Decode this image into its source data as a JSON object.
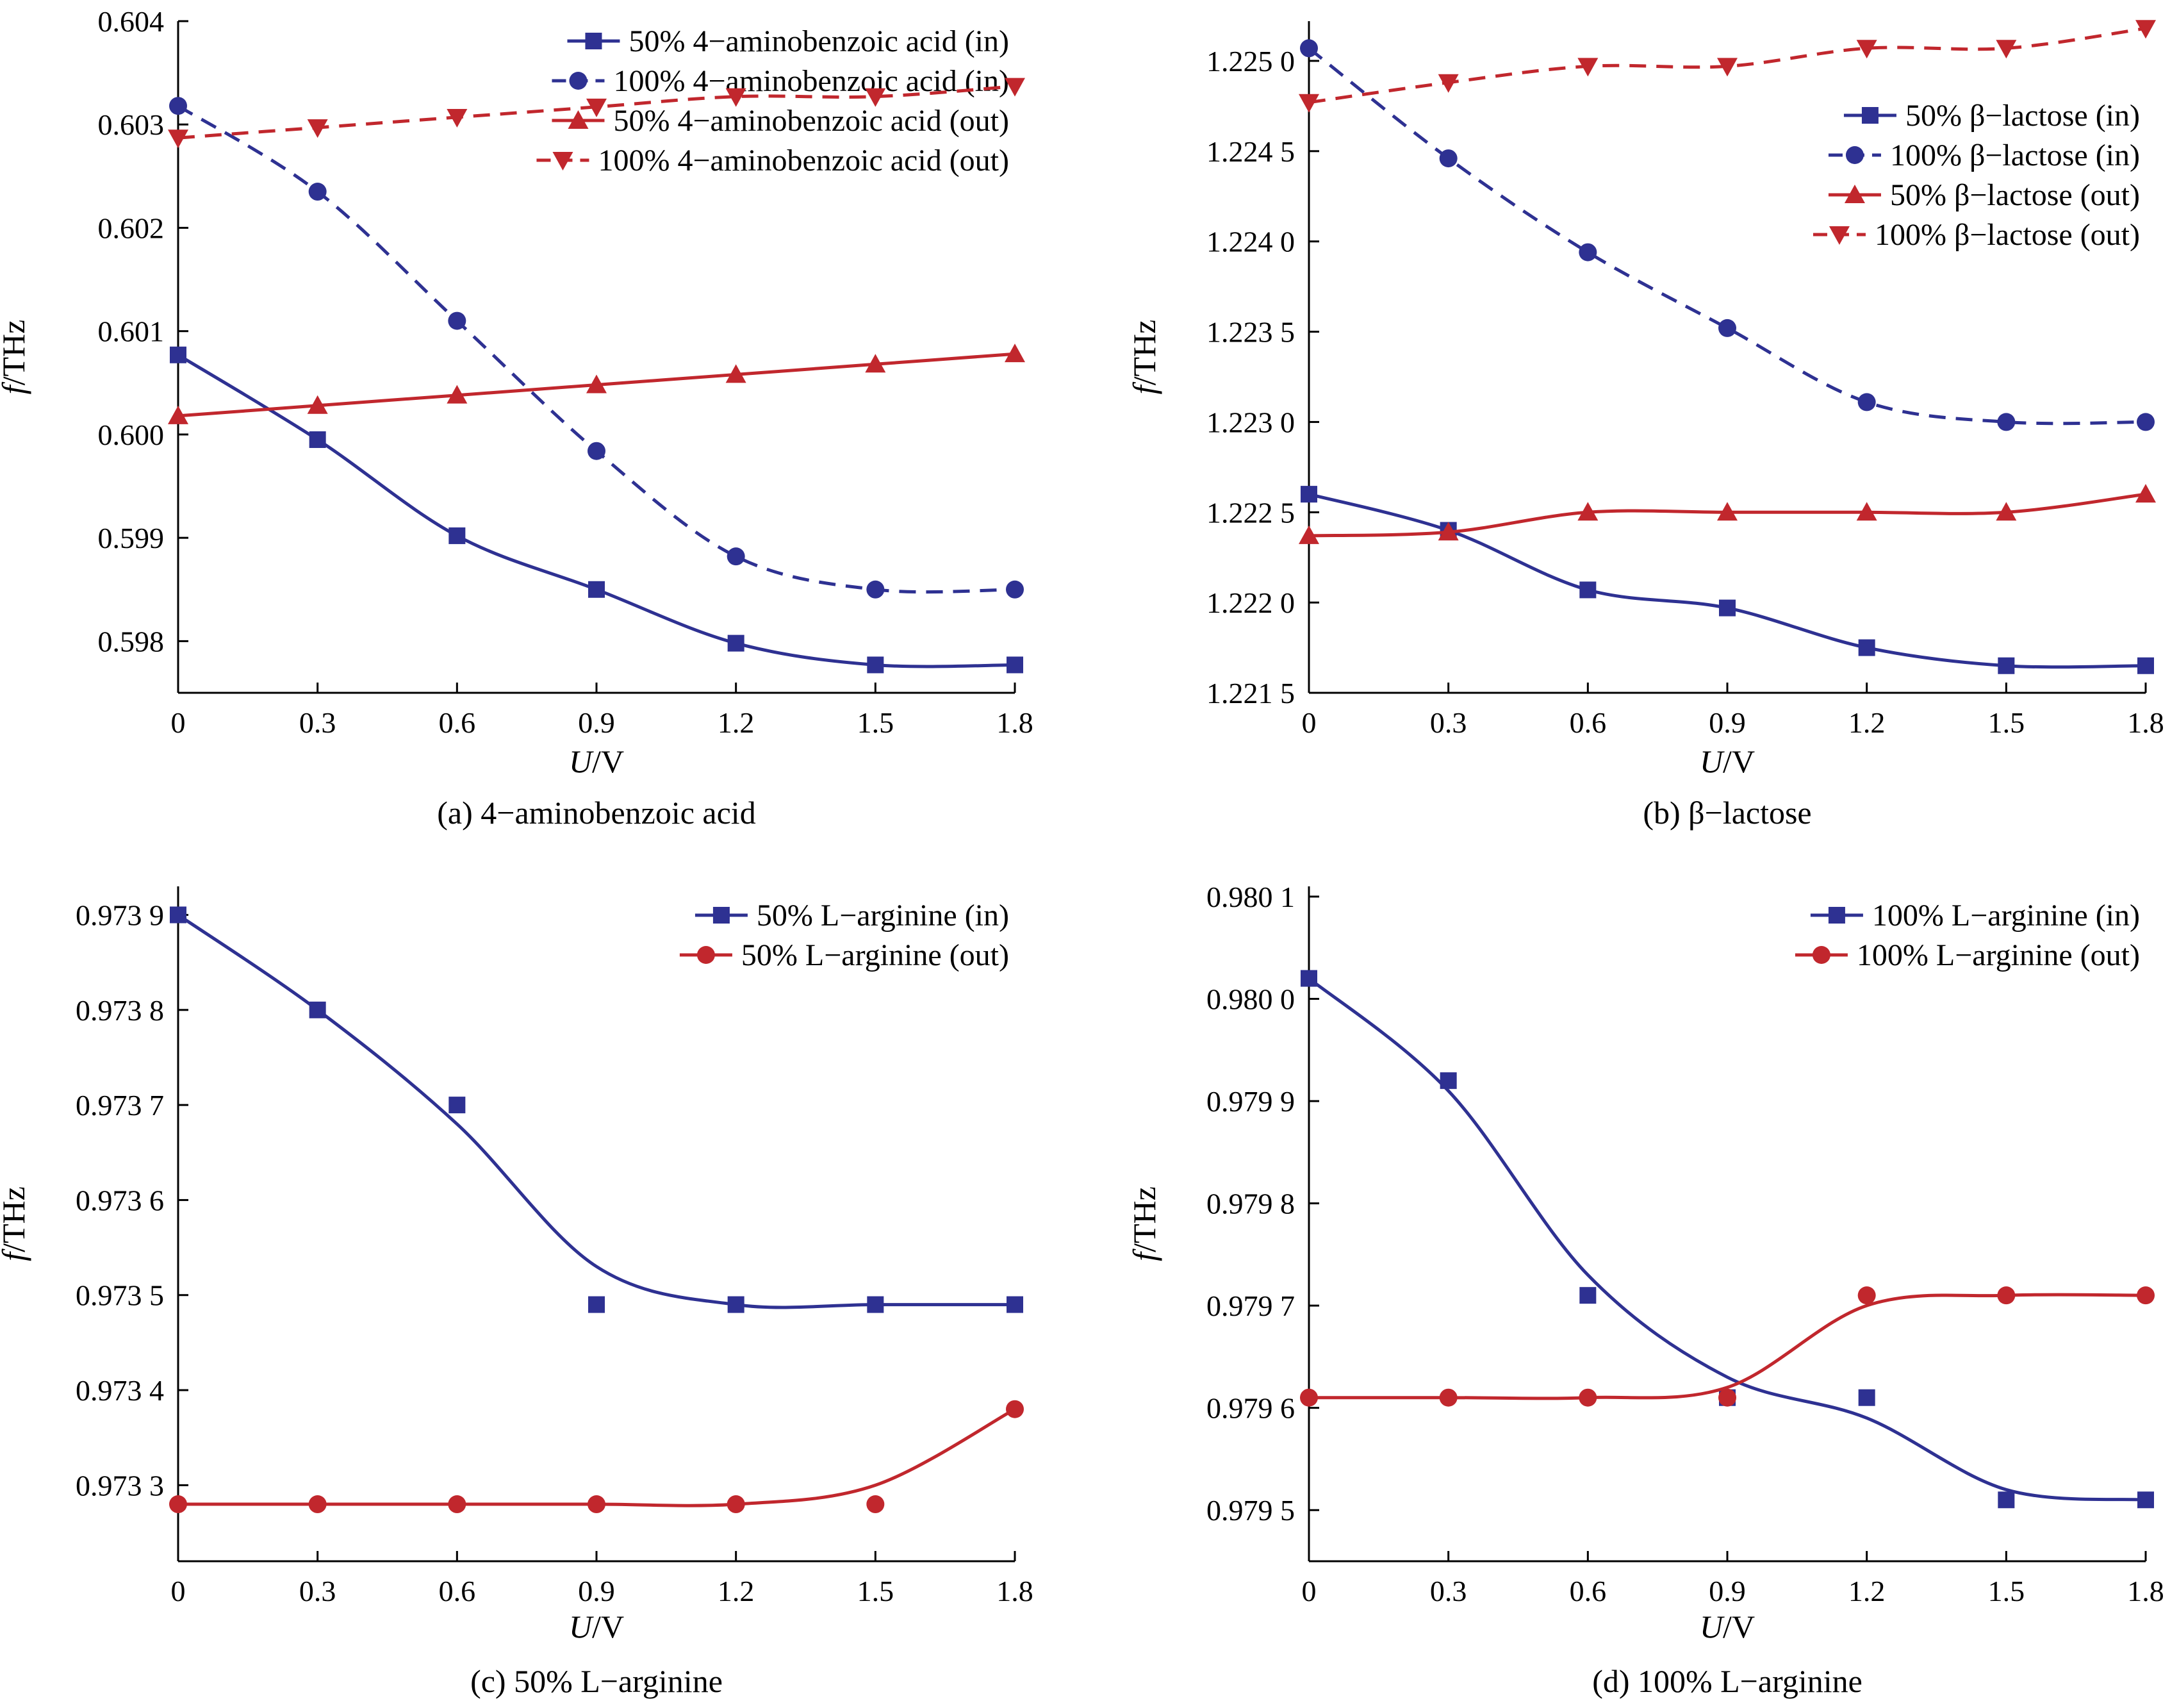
{
  "colors": {
    "blue": "#2E3192",
    "red": "#C1272D",
    "axis": "#000000"
  },
  "chart_data": [
    {
      "id": "a",
      "type": "line",
      "caption": "(a) 4−aminobenzoic acid",
      "xlabel_italic": "U",
      "xlabel_unit": "/V",
      "ylabel_italic": "f",
      "ylabel_unit": "/THz",
      "xlim": [
        0,
        1.8
      ],
      "ylim": [
        0.5975,
        0.604
      ],
      "x_ticks": [
        0,
        0.3,
        0.6,
        0.9,
        1.2,
        1.5,
        1.8
      ],
      "x_tick_labels": [
        "0",
        "0.3",
        "0.6",
        "0.9",
        "1.2",
        "1.5",
        "1.8"
      ],
      "y_ticks": [
        0.598,
        0.599,
        0.6,
        0.601,
        0.602,
        0.603,
        0.604
      ],
      "y_tick_labels": [
        "0.598",
        "0.599",
        "0.600",
        "0.601",
        "0.602",
        "0.603",
        "0.604"
      ],
      "legend_position": "top-right",
      "x": [
        0,
        0.3,
        0.6,
        0.9,
        1.2,
        1.5,
        1.8
      ],
      "series": [
        {
          "name": "50% 4−aminobenzoic acid (in)",
          "color": "blue",
          "marker": "square",
          "line": "solid",
          "values": [
            0.60077,
            0.59995,
            0.59902,
            0.5985,
            0.59798,
            0.59777,
            0.59777
          ]
        },
        {
          "name": "100% 4−aminobenzoic acid (in)",
          "color": "blue",
          "marker": "circle",
          "line": "dashed",
          "values": [
            0.60318,
            0.60235,
            0.6011,
            0.59984,
            0.59882,
            0.5985,
            0.5985
          ]
        },
        {
          "name": "50% 4−aminobenzoic acid (out)",
          "color": "red",
          "marker": "triangle-up",
          "line": "solid",
          "values": [
            0.60018,
            0.60028,
            0.60038,
            0.60048,
            0.60058,
            0.60068,
            0.60078
          ]
        },
        {
          "name": "100% 4−aminobenzoic acid (out)",
          "color": "red",
          "marker": "triangle-down",
          "line": "dashed",
          "values": [
            0.60287,
            0.60297,
            0.60307,
            0.60317,
            0.60327,
            0.60327,
            0.60337
          ]
        }
      ]
    },
    {
      "id": "b",
      "type": "line",
      "caption": "(b) β−lactose",
      "xlabel_italic": "U",
      "xlabel_unit": "/V",
      "ylabel_italic": "f",
      "ylabel_unit": "/THz",
      "xlim": [
        0,
        1.8
      ],
      "ylim": [
        1.2215,
        1.22522
      ],
      "x_ticks": [
        0,
        0.3,
        0.6,
        0.9,
        1.2,
        1.5,
        1.8
      ],
      "x_tick_labels": [
        "0",
        "0.3",
        "0.6",
        "0.9",
        "1.2",
        "1.5",
        "1.8"
      ],
      "y_ticks": [
        1.2215,
        1.222,
        1.2225,
        1.223,
        1.2235,
        1.224,
        1.2245,
        1.225
      ],
      "y_tick_labels": [
        "1.221 5",
        "1.222 0",
        "1.222 5",
        "1.223 0",
        "1.223 5",
        "1.224 0",
        "1.224 5",
        "1.225 0"
      ],
      "legend_position": "top-right",
      "x": [
        0,
        0.3,
        0.6,
        0.9,
        1.2,
        1.5,
        1.8
      ],
      "series": [
        {
          "name": "50% β−lactose (in)",
          "color": "blue",
          "marker": "square",
          "line": "solid",
          "values": [
            1.2226,
            1.2224,
            1.22207,
            1.22197,
            1.22175,
            1.22165,
            1.22165
          ]
        },
        {
          "name": "100% β−lactose (in)",
          "color": "blue",
          "marker": "circle",
          "line": "dashed",
          "values": [
            1.22507,
            1.22446,
            1.22394,
            1.22352,
            1.22311,
            1.223,
            1.223
          ]
        },
        {
          "name": "50% β−lactose (out)",
          "color": "red",
          "marker": "triangle-up",
          "line": "solid",
          "values": [
            1.22237,
            1.22239,
            1.2225,
            1.2225,
            1.2225,
            1.2225,
            1.2226
          ]
        },
        {
          "name": "100% β−lactose (out)",
          "color": "red",
          "marker": "triangle-down",
          "line": "dashed",
          "values": [
            1.22477,
            1.22488,
            1.22497,
            1.22497,
            1.22507,
            1.22507,
            1.22518
          ]
        }
      ]
    },
    {
      "id": "c",
      "type": "line",
      "caption": "(c) 50% L−arginine",
      "xlabel_italic": "U",
      "xlabel_unit": "/V",
      "ylabel_italic": "f",
      "ylabel_unit": "/THz",
      "xlim": [
        0,
        1.8
      ],
      "ylim": [
        0.97322,
        0.97393
      ],
      "x_ticks": [
        0,
        0.3,
        0.6,
        0.9,
        1.2,
        1.5,
        1.8
      ],
      "x_tick_labels": [
        "0",
        "0.3",
        "0.6",
        "0.9",
        "1.2",
        "1.5",
        "1.8"
      ],
      "y_ticks": [
        0.9733,
        0.9734,
        0.9735,
        0.9736,
        0.9737,
        0.9738,
        0.9739
      ],
      "y_tick_labels": [
        "0.973 3",
        "0.973 4",
        "0.973 5",
        "0.973 6",
        "0.973 7",
        "0.973 8",
        "0.973 9"
      ],
      "legend_position": "top-right",
      "x": [
        0,
        0.3,
        0.6,
        0.9,
        1.2,
        1.5,
        1.8
      ],
      "series": [
        {
          "name": "50% L−arginine (in)",
          "color": "blue",
          "marker": "square",
          "line": "solid",
          "values": [
            0.9739,
            0.9738,
            0.9737,
            0.97349,
            0.97349,
            0.97349,
            0.97349
          ],
          "fit": [
            0.9739,
            0.9738,
            0.97368,
            0.97353,
            0.97349,
            0.97349,
            0.97349
          ]
        },
        {
          "name": "50% L−arginine (out)",
          "color": "red",
          "marker": "circle",
          "line": "solid",
          "values": [
            0.97328,
            0.97328,
            0.97328,
            0.97328,
            0.97328,
            0.97328,
            0.97338
          ],
          "fit": [
            0.97328,
            0.97328,
            0.97328,
            0.97328,
            0.97328,
            0.9733,
            0.97338
          ]
        }
      ]
    },
    {
      "id": "d",
      "type": "line",
      "caption": "(d) 100% L−arginine",
      "xlabel_italic": "U",
      "xlabel_unit": "/V",
      "ylabel_italic": "f",
      "ylabel_unit": "/THz",
      "xlim": [
        0,
        1.8
      ],
      "ylim": [
        0.97945,
        0.98011
      ],
      "x_ticks": [
        0,
        0.3,
        0.6,
        0.9,
        1.2,
        1.5,
        1.8
      ],
      "x_tick_labels": [
        "0",
        "0.3",
        "0.6",
        "0.9",
        "1.2",
        "1.5",
        "1.8"
      ],
      "y_ticks": [
        0.9795,
        0.9796,
        0.9797,
        0.9798,
        0.9799,
        0.98,
        0.9801
      ],
      "y_tick_labels": [
        "0.979 5",
        "0.979 6",
        "0.979 7",
        "0.979 8",
        "0.979 9",
        "0.980 0",
        "0.980 1"
      ],
      "legend_position": "top-right",
      "x": [
        0,
        0.3,
        0.6,
        0.9,
        1.2,
        1.5,
        1.8
      ],
      "series": [
        {
          "name": "100% L−arginine (in)",
          "color": "blue",
          "marker": "square",
          "line": "solid",
          "values": [
            0.98002,
            0.97992,
            0.97971,
            0.97961,
            0.97961,
            0.97951,
            0.97951
          ],
          "fit": [
            0.98002,
            0.97991,
            0.97973,
            0.97963,
            0.97959,
            0.97952,
            0.97951
          ]
        },
        {
          "name": "100% L−arginine (out)",
          "color": "red",
          "marker": "circle",
          "line": "solid",
          "values": [
            0.97961,
            0.97961,
            0.97961,
            0.97961,
            0.97971,
            0.97971,
            0.97971
          ],
          "fit": [
            0.97961,
            0.97961,
            0.97961,
            0.97962,
            0.9797,
            0.97971,
            0.97971
          ]
        }
      ]
    }
  ]
}
